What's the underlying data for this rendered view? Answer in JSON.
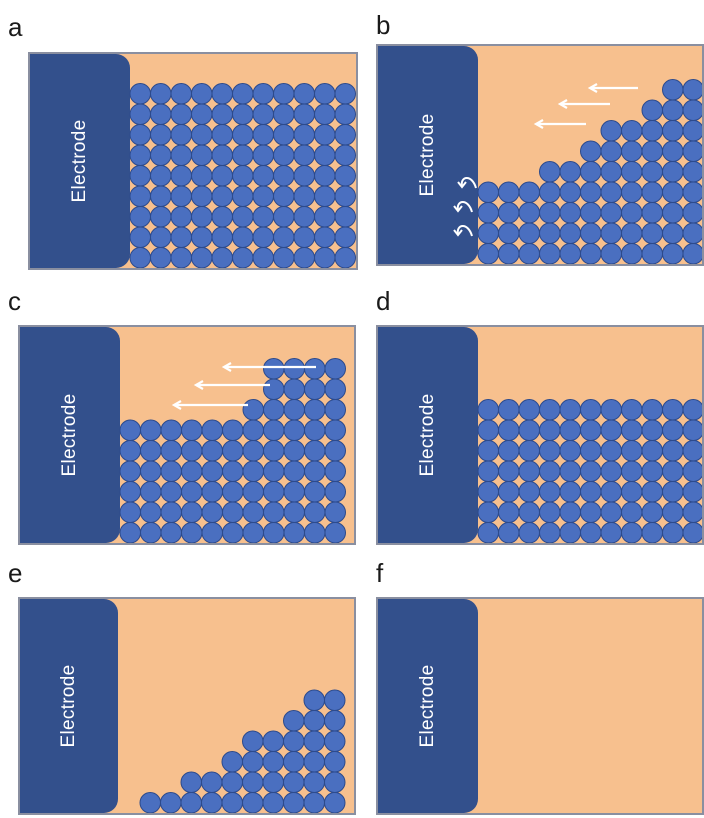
{
  "panels": [
    {
      "id": "a",
      "label": "a",
      "electrode_label": "Electrode"
    },
    {
      "id": "b",
      "label": "b",
      "electrode_label": "Electrode"
    },
    {
      "id": "c",
      "label": "c",
      "electrode_label": "Electrode"
    },
    {
      "id": "d",
      "label": "d",
      "electrode_label": "Electrode"
    },
    {
      "id": "e",
      "label": "e",
      "electrode_label": "Electrode"
    },
    {
      "id": "f",
      "label": "f",
      "electrode_label": "Electrode"
    }
  ],
  "colors": {
    "background_fill": "#f7c08e",
    "electrode": "#33508c",
    "particle": "#4a6fc0",
    "particle_edge": "#2c4a8c",
    "arrow": "#ffffff",
    "frame": "#8a8fa0"
  }
}
